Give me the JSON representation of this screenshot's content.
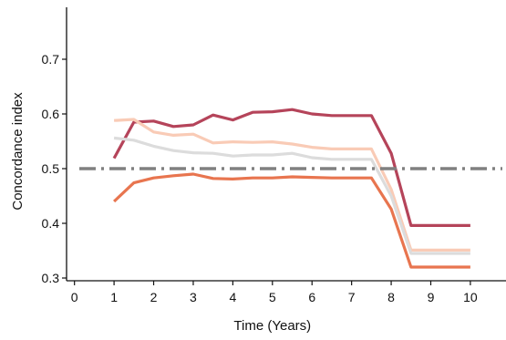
{
  "chart_data": {
    "type": "line",
    "xlabel": "Time (Years)",
    "ylabel": "Concordance index",
    "xlim": [
      -0.2,
      10.9
    ],
    "ylim": [
      0.295,
      0.795
    ],
    "x_ticks": [
      0,
      1,
      2,
      3,
      4,
      5,
      6,
      7,
      8,
      9,
      10
    ],
    "y_ticks": [
      0.3,
      0.4,
      0.5,
      0.6,
      0.7
    ],
    "grid": false,
    "legend": "none",
    "reference_line": {
      "y": 0.5,
      "style": "dash-dot",
      "color": "#808080"
    },
    "series": [
      {
        "color": "#b5445a",
        "x": [
          1,
          1.5,
          2,
          2.5,
          3,
          3.5,
          4,
          4.5,
          5,
          5.5,
          6,
          6.5,
          7,
          7.5,
          8,
          8.5,
          9,
          9.5,
          10
        ],
        "y": [
          0.519,
          0.585,
          0.587,
          0.577,
          0.58,
          0.598,
          0.589,
          0.603,
          0.604,
          0.608,
          0.6,
          0.597,
          0.597,
          0.597,
          0.528,
          0.396,
          0.396,
          0.396,
          0.396
        ]
      },
      {
        "color": "#f9cbb6",
        "x": [
          1,
          1.5,
          2,
          2.5,
          3,
          3.5,
          4,
          4.5,
          5,
          5.5,
          6,
          6.5,
          7,
          7.5,
          8,
          8.5,
          9,
          9.5,
          10
        ],
        "y": [
          0.588,
          0.59,
          0.567,
          0.561,
          0.563,
          0.547,
          0.549,
          0.548,
          0.549,
          0.545,
          0.539,
          0.536,
          0.536,
          0.536,
          0.462,
          0.351,
          0.351,
          0.351,
          0.351
        ]
      },
      {
        "color": "#dcdcdc",
        "x": [
          1,
          1.5,
          2,
          2.5,
          3,
          3.5,
          4,
          4.5,
          5,
          5.5,
          6,
          6.5,
          7,
          7.5,
          8,
          8.5,
          9,
          9.5,
          10
        ],
        "y": [
          0.556,
          0.552,
          0.541,
          0.533,
          0.529,
          0.528,
          0.523,
          0.525,
          0.525,
          0.528,
          0.52,
          0.517,
          0.517,
          0.517,
          0.45,
          0.345,
          0.345,
          0.345,
          0.345
        ]
      },
      {
        "color": "#e8754f",
        "x": [
          1,
          1.5,
          2,
          2.5,
          3,
          3.5,
          4,
          4.5,
          5,
          5.5,
          6,
          6.5,
          7,
          7.5,
          8,
          8.5,
          9,
          9.5,
          10
        ],
        "y": [
          0.44,
          0.474,
          0.483,
          0.487,
          0.49,
          0.482,
          0.481,
          0.483,
          0.483,
          0.485,
          0.484,
          0.483,
          0.483,
          0.483,
          0.426,
          0.32,
          0.32,
          0.32,
          0.32
        ]
      }
    ]
  }
}
